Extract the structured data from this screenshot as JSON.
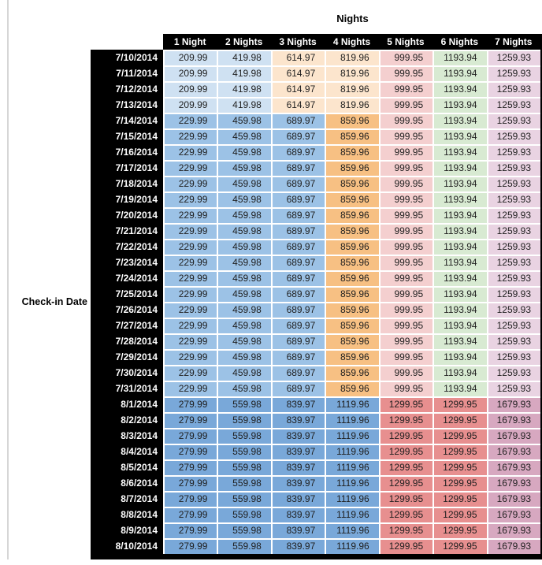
{
  "title": "Nights",
  "side_label": "Check-in Date",
  "chart_data": {
    "type": "table",
    "title": "Nights",
    "row_header_label": "Check-in Date",
    "columns": [
      "1 Night",
      "2 Nights",
      "3 Nights",
      "4 Nights",
      "5 Nights",
      "6 Nights",
      "7 Nights"
    ],
    "rows": [
      {
        "date": "7/10/2014",
        "tier": "early_july",
        "values": [
          209.99,
          419.98,
          614.97,
          819.96,
          999.95,
          1193.94,
          1259.93
        ]
      },
      {
        "date": "7/11/2014",
        "tier": "early_july",
        "values": [
          209.99,
          419.98,
          614.97,
          819.96,
          999.95,
          1193.94,
          1259.93
        ]
      },
      {
        "date": "7/12/2014",
        "tier": "early_july",
        "values": [
          209.99,
          419.98,
          614.97,
          819.96,
          999.95,
          1193.94,
          1259.93
        ]
      },
      {
        "date": "7/13/2014",
        "tier": "early_july",
        "values": [
          209.99,
          419.98,
          614.97,
          819.96,
          999.95,
          1193.94,
          1259.93
        ]
      },
      {
        "date": "7/14/2014",
        "tier": "mid_july",
        "values": [
          229.99,
          459.98,
          689.97,
          859.96,
          999.95,
          1193.94,
          1259.93
        ]
      },
      {
        "date": "7/15/2014",
        "tier": "mid_july",
        "values": [
          229.99,
          459.98,
          689.97,
          859.96,
          999.95,
          1193.94,
          1259.93
        ]
      },
      {
        "date": "7/16/2014",
        "tier": "mid_july",
        "values": [
          229.99,
          459.98,
          689.97,
          859.96,
          999.95,
          1193.94,
          1259.93
        ]
      },
      {
        "date": "7/17/2014",
        "tier": "mid_july",
        "values": [
          229.99,
          459.98,
          689.97,
          859.96,
          999.95,
          1193.94,
          1259.93
        ]
      },
      {
        "date": "7/18/2014",
        "tier": "mid_july",
        "values": [
          229.99,
          459.98,
          689.97,
          859.96,
          999.95,
          1193.94,
          1259.93
        ]
      },
      {
        "date": "7/19/2014",
        "tier": "mid_july",
        "values": [
          229.99,
          459.98,
          689.97,
          859.96,
          999.95,
          1193.94,
          1259.93
        ]
      },
      {
        "date": "7/20/2014",
        "tier": "mid_july",
        "values": [
          229.99,
          459.98,
          689.97,
          859.96,
          999.95,
          1193.94,
          1259.93
        ]
      },
      {
        "date": "7/21/2014",
        "tier": "mid_july",
        "values": [
          229.99,
          459.98,
          689.97,
          859.96,
          999.95,
          1193.94,
          1259.93
        ]
      },
      {
        "date": "7/22/2014",
        "tier": "mid_july",
        "values": [
          229.99,
          459.98,
          689.97,
          859.96,
          999.95,
          1193.94,
          1259.93
        ]
      },
      {
        "date": "7/23/2014",
        "tier": "mid_july",
        "values": [
          229.99,
          459.98,
          689.97,
          859.96,
          999.95,
          1193.94,
          1259.93
        ]
      },
      {
        "date": "7/24/2014",
        "tier": "mid_july",
        "values": [
          229.99,
          459.98,
          689.97,
          859.96,
          999.95,
          1193.94,
          1259.93
        ]
      },
      {
        "date": "7/25/2014",
        "tier": "mid_july",
        "values": [
          229.99,
          459.98,
          689.97,
          859.96,
          999.95,
          1193.94,
          1259.93
        ]
      },
      {
        "date": "7/26/2014",
        "tier": "mid_july",
        "values": [
          229.99,
          459.98,
          689.97,
          859.96,
          999.95,
          1193.94,
          1259.93
        ]
      },
      {
        "date": "7/27/2014",
        "tier": "mid_july",
        "values": [
          229.99,
          459.98,
          689.97,
          859.96,
          999.95,
          1193.94,
          1259.93
        ]
      },
      {
        "date": "7/28/2014",
        "tier": "mid_july",
        "values": [
          229.99,
          459.98,
          689.97,
          859.96,
          999.95,
          1193.94,
          1259.93
        ]
      },
      {
        "date": "7/29/2014",
        "tier": "mid_july",
        "values": [
          229.99,
          459.98,
          689.97,
          859.96,
          999.95,
          1193.94,
          1259.93
        ]
      },
      {
        "date": "7/30/2014",
        "tier": "mid_july",
        "values": [
          229.99,
          459.98,
          689.97,
          859.96,
          999.95,
          1193.94,
          1259.93
        ]
      },
      {
        "date": "7/31/2014",
        "tier": "mid_july",
        "values": [
          229.99,
          459.98,
          689.97,
          859.96,
          999.95,
          1193.94,
          1259.93
        ]
      },
      {
        "date": "8/1/2014",
        "tier": "august",
        "values": [
          279.99,
          559.98,
          839.97,
          1119.96,
          1299.95,
          1299.95,
          1679.93
        ]
      },
      {
        "date": "8/2/2014",
        "tier": "august",
        "values": [
          279.99,
          559.98,
          839.97,
          1119.96,
          1299.95,
          1299.95,
          1679.93
        ]
      },
      {
        "date": "8/3/2014",
        "tier": "august",
        "values": [
          279.99,
          559.98,
          839.97,
          1119.96,
          1299.95,
          1299.95,
          1679.93
        ]
      },
      {
        "date": "8/4/2014",
        "tier": "august",
        "values": [
          279.99,
          559.98,
          839.97,
          1119.96,
          1299.95,
          1299.95,
          1679.93
        ]
      },
      {
        "date": "8/5/2014",
        "tier": "august",
        "values": [
          279.99,
          559.98,
          839.97,
          1119.96,
          1299.95,
          1299.95,
          1679.93
        ]
      },
      {
        "date": "8/6/2014",
        "tier": "august",
        "values": [
          279.99,
          559.98,
          839.97,
          1119.96,
          1299.95,
          1299.95,
          1679.93
        ]
      },
      {
        "date": "8/7/2014",
        "tier": "august",
        "values": [
          279.99,
          559.98,
          839.97,
          1119.96,
          1299.95,
          1299.95,
          1679.93
        ]
      },
      {
        "date": "8/8/2014",
        "tier": "august",
        "values": [
          279.99,
          559.98,
          839.97,
          1119.96,
          1299.95,
          1299.95,
          1679.93
        ]
      },
      {
        "date": "8/9/2014",
        "tier": "august",
        "values": [
          279.99,
          559.98,
          839.97,
          1119.96,
          1299.95,
          1299.95,
          1679.93
        ]
      },
      {
        "date": "8/10/2014",
        "tier": "august",
        "values": [
          279.99,
          559.98,
          839.97,
          1119.96,
          1299.95,
          1299.95,
          1679.93
        ]
      }
    ],
    "tier_cell_colors": {
      "early_july": [
        "lightBlue",
        "lightBlue",
        "lightOrange",
        "lightOrange",
        "lightRed",
        "lightGreen",
        "lightPurple"
      ],
      "mid_july": [
        "midBlue",
        "midBlue",
        "midBlue",
        "midOrange",
        "lightRed",
        "lightGreen",
        "lightPurple"
      ],
      "august": [
        "augBlue",
        "augBlue",
        "augBlue",
        "augBlue",
        "midRed",
        "midRed",
        "midPurple"
      ]
    },
    "palette": {
      "lightBlue": "#cfe1f2",
      "midBlue": "#9cc2e6",
      "augBlue": "#79a8d9",
      "lightOrange": "#fce5cd",
      "midOrange": "#f7c083",
      "lightRed": "#f4cfcf",
      "midRed": "#e78f8f",
      "lightGreen": "#d8ead2",
      "lightPurple": "#e9d3e2",
      "midPurple": "#d7a8c0"
    },
    "header_bg": "#000000",
    "header_text_color": "#ffffff"
  }
}
